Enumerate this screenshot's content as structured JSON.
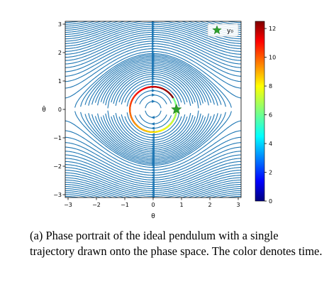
{
  "chart_data": {
    "type": "streamplot",
    "xlabel": "θ",
    "ylabel": "θ̇",
    "xlim": [
      -3.1,
      3.1
    ],
    "ylim": [
      -3.1,
      3.1
    ],
    "xticks": [
      -3,
      -2,
      -1,
      0,
      1,
      2,
      3
    ],
    "yticks": [
      -3,
      -2,
      -1,
      0,
      1,
      2,
      3
    ],
    "xtick_labels": [
      "−3",
      "−2",
      "−1",
      "0",
      "1",
      "2",
      "3"
    ],
    "ytick_labels": [
      "−3",
      "−2",
      "−1",
      "0",
      "1",
      "2",
      "3"
    ],
    "stream_color": "#1f77b4",
    "field": "theta_dot = y; y_dot = -sin(theta)",
    "trajectory": {
      "initial_condition": {
        "theta": 0.82,
        "theta_dot": 0.0
      },
      "time_range": [
        0,
        12.5
      ],
      "colormap": "jet"
    },
    "marker": {
      "label": "y₀",
      "symbol": "star",
      "color": "#2ca02c",
      "theta": 0.82,
      "theta_dot": 0.0
    },
    "legend": {
      "entries": [
        "y₀"
      ],
      "location": "upper right"
    },
    "colorbar": {
      "min": 0,
      "max": 12.5,
      "ticks": [
        0,
        2,
        4,
        6,
        8,
        10,
        12
      ],
      "tick_labels": [
        "0",
        "2",
        "4",
        "6",
        "8",
        "10",
        "12"
      ]
    }
  },
  "caption": "(a) Phase portrait of the ideal pendulum with a single trajectory drawn onto the phase space. The color denotes time."
}
